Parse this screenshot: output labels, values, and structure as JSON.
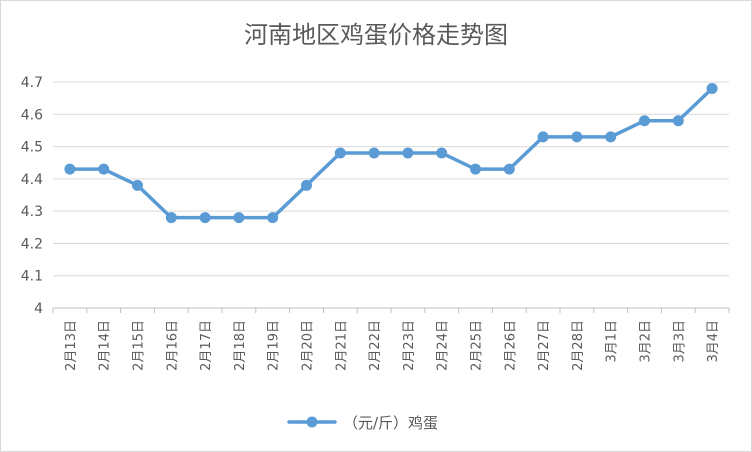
{
  "chart_data": {
    "type": "line",
    "title": "河南地区鸡蛋价格走势图",
    "xlabel": "",
    "ylabel": "",
    "categories": [
      "2月13日",
      "2月14日",
      "2月15日",
      "2月16日",
      "2月17日",
      "2月18日",
      "2月19日",
      "2月20日",
      "2月21日",
      "2月22日",
      "2月23日",
      "2月24日",
      "2月25日",
      "2月26日",
      "2月27日",
      "2月28日",
      "3月1日",
      "3月2日",
      "3月3日",
      "3月4日"
    ],
    "series": [
      {
        "name": "（元/斤）鸡蛋",
        "values": [
          4.43,
          4.43,
          4.38,
          4.28,
          4.28,
          4.28,
          4.28,
          4.38,
          4.48,
          4.48,
          4.48,
          4.48,
          4.43,
          4.43,
          4.53,
          4.53,
          4.53,
          4.58,
          4.58,
          4.68
        ],
        "color": "#5b9bd5"
      }
    ],
    "ylim": [
      4,
      4.7
    ],
    "yticks": [
      "4",
      "4.1",
      "4.2",
      "4.3",
      "4.4",
      "4.5",
      "4.6",
      "4.7"
    ],
    "grid": true,
    "legend_position": "bottom"
  }
}
